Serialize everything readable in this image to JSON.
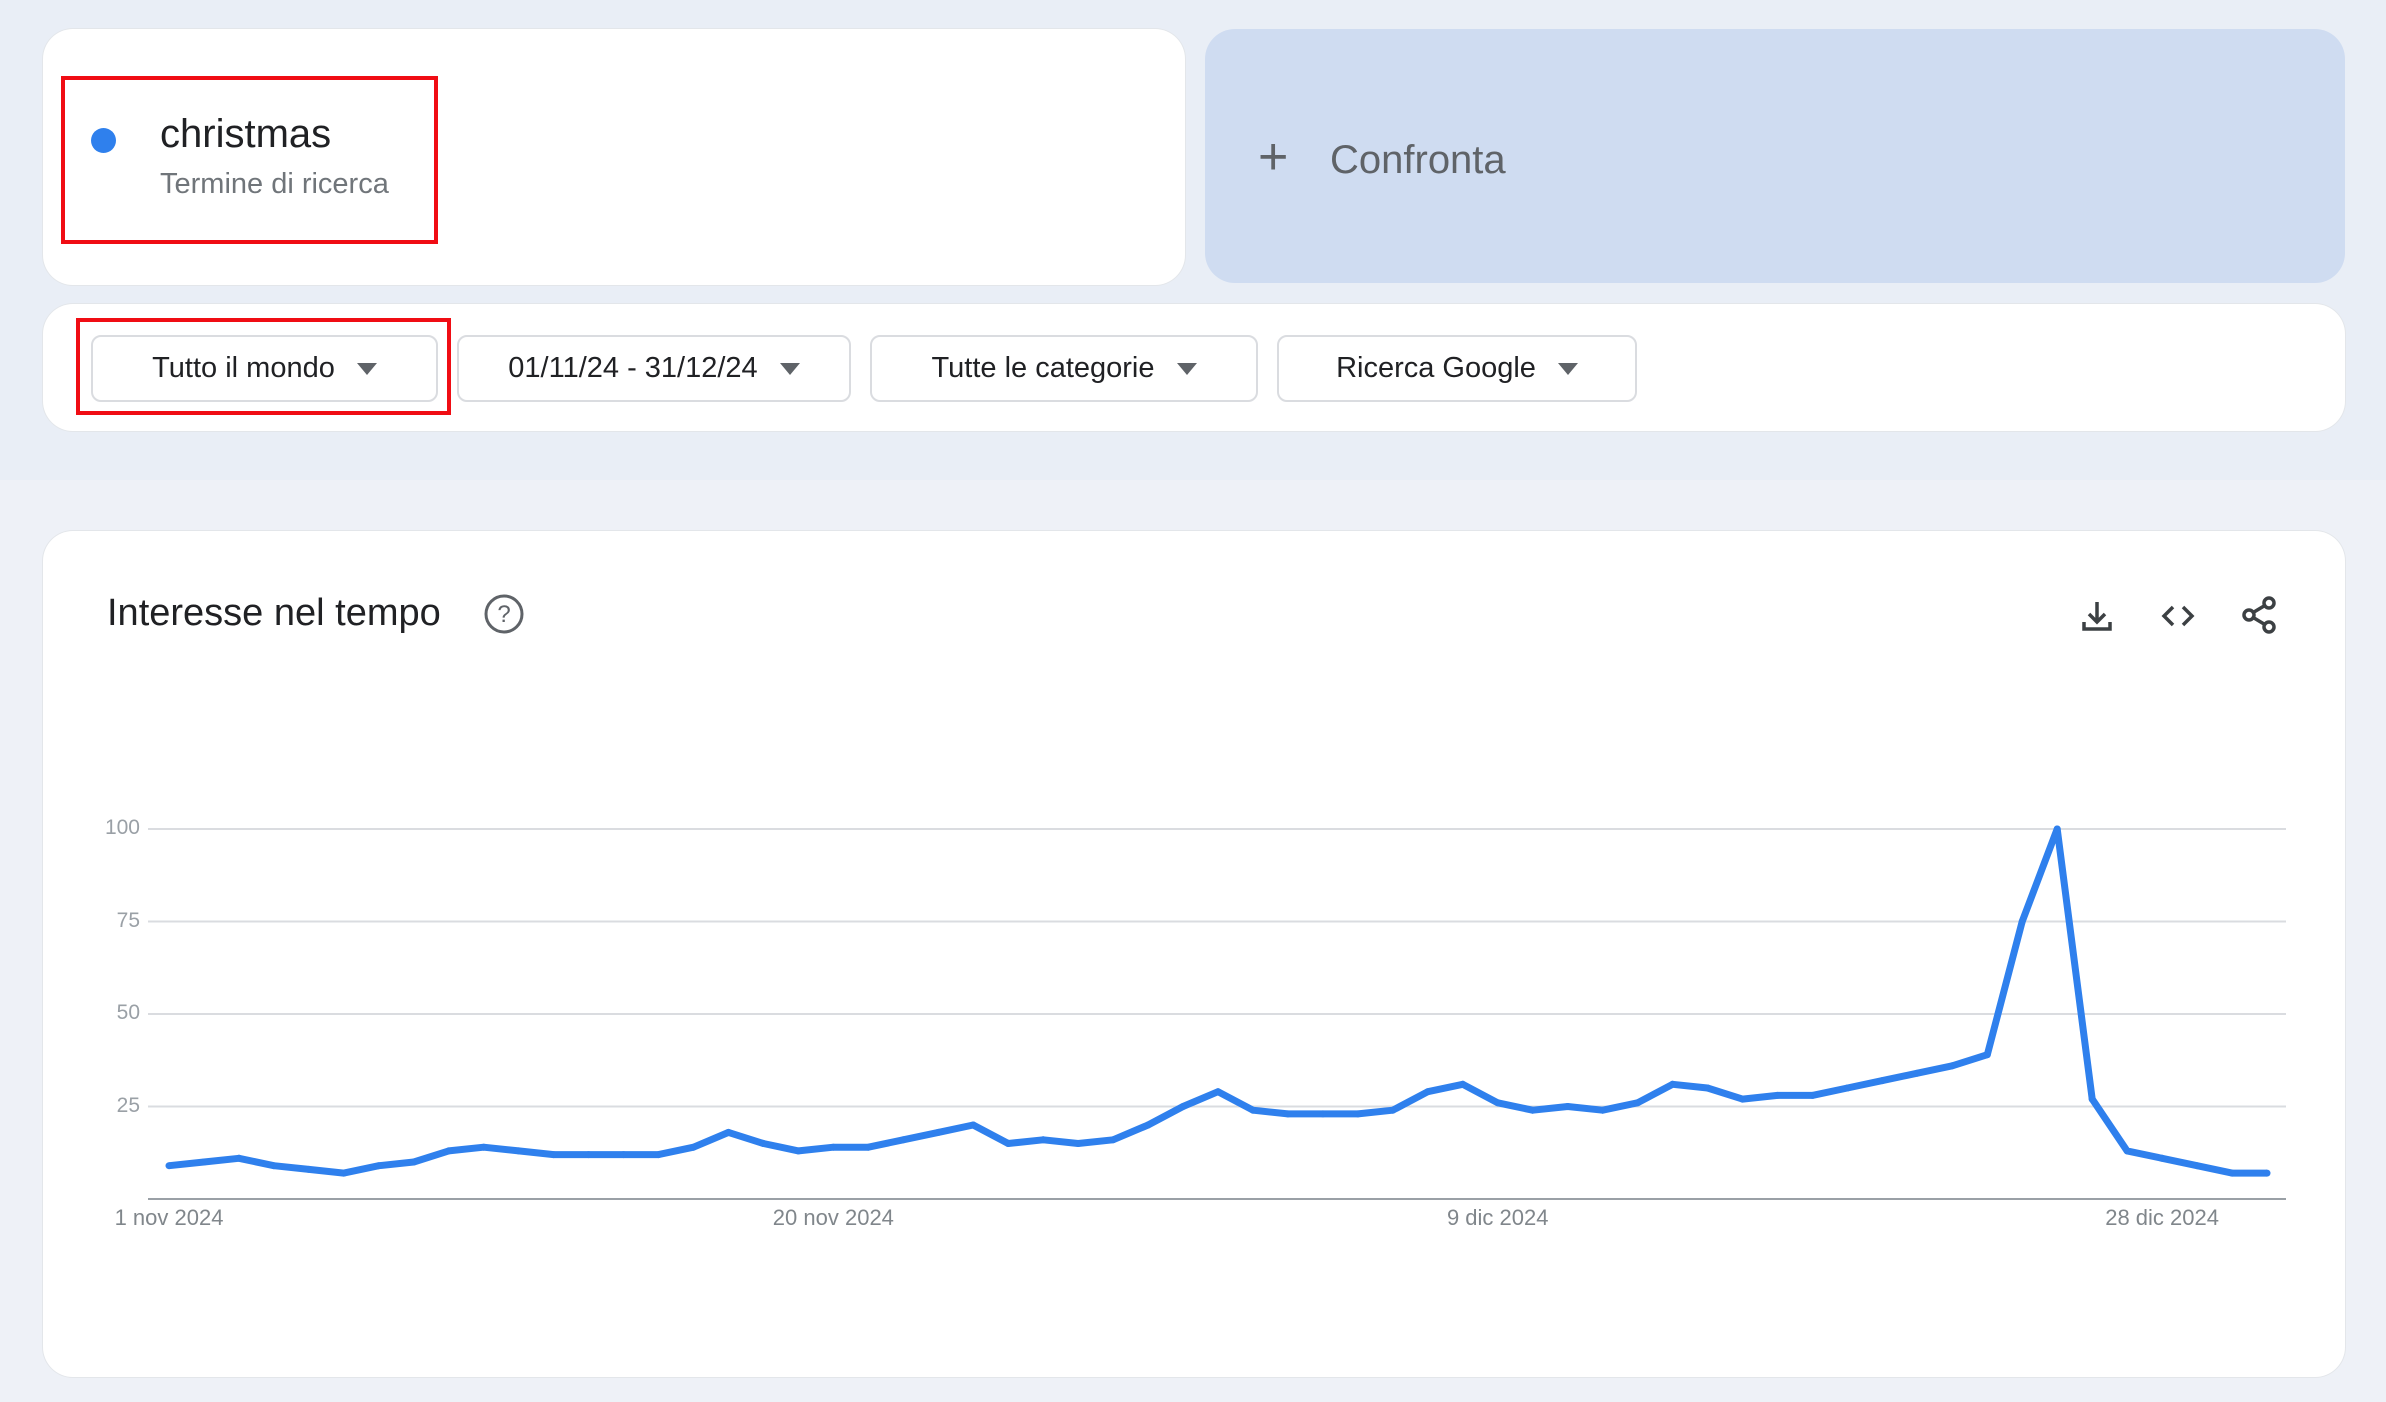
{
  "search_term": {
    "name": "christmas",
    "type": "Termine di ricerca",
    "color": "#2f80ed"
  },
  "compare": {
    "label": "Confronta",
    "icon": "plus-icon"
  },
  "filters": [
    {
      "label": "Tutto il mondo"
    },
    {
      "label": "01/11/24 - 31/12/24"
    },
    {
      "label": "Tutte le categorie"
    },
    {
      "label": "Ricerca Google"
    }
  ],
  "highlight_color": "#f00d14",
  "chart_panel": {
    "title": "Interesse nel tempo",
    "icons": [
      "help-icon",
      "download-icon",
      "embed-code-icon",
      "share-icon"
    ]
  },
  "chart_data": {
    "type": "line",
    "title": "Interesse nel tempo",
    "x_start": "2024-11-01",
    "x_end": "2024-12-31",
    "x_interval": "day",
    "x_ticks": [
      "1 nov 2024",
      "20 nov 2024",
      "9 dic 2024",
      "28 dic 2024"
    ],
    "y_ticks": [
      "100",
      "75",
      "50",
      "25"
    ],
    "ylim": [
      0,
      100
    ],
    "grid": true,
    "series": [
      {
        "color": "#2f80ed",
        "values": [
          9,
          10,
          11,
          9,
          8,
          7,
          9,
          10,
          13,
          14,
          13,
          12,
          12,
          12,
          12,
          14,
          18,
          15,
          13,
          14,
          14,
          16,
          18,
          20,
          15,
          16,
          15,
          16,
          20,
          25,
          29,
          24,
          23,
          23,
          23,
          24,
          29,
          31,
          26,
          24,
          25,
          24,
          26,
          31,
          30,
          27,
          28,
          28,
          30,
          32,
          34,
          36,
          39,
          75,
          100,
          27,
          13,
          11,
          9,
          7,
          7
        ]
      }
    ]
  }
}
